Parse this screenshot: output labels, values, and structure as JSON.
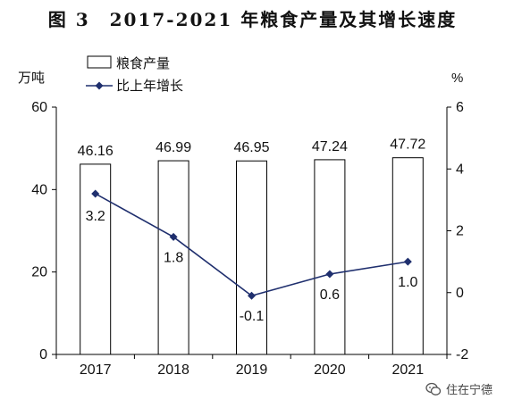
{
  "title": "图 3　2017-2021 年粮食产量及其增长速度",
  "watermark": "住在宁德",
  "chart_data": {
    "type": "bar+line",
    "categories": [
      "2017",
      "2018",
      "2019",
      "2020",
      "2021"
    ],
    "series": [
      {
        "name": "粮食产量",
        "kind": "bar",
        "axis": "left",
        "values": [
          46.16,
          46.99,
          46.95,
          47.24,
          47.72
        ],
        "labels": [
          "46.16",
          "46.99",
          "46.95",
          "47.24",
          "47.72"
        ]
      },
      {
        "name": "比上年增长",
        "kind": "line",
        "axis": "right",
        "values": [
          3.2,
          1.8,
          -0.1,
          0.6,
          1.0
        ],
        "labels": [
          "3.2",
          "1.8",
          "-0.1",
          "0.6",
          "1.0"
        ]
      }
    ],
    "y_left": {
      "unit": "万吨",
      "ylim": [
        0,
        60
      ],
      "ticks": [
        "0",
        "20",
        "40",
        "60"
      ]
    },
    "y_right": {
      "unit": "%",
      "ylim": [
        -2,
        6
      ],
      "ticks": [
        "-2",
        "0",
        "2",
        "4",
        "6"
      ]
    },
    "legend_position": "top-left",
    "colors": {
      "bar_fill": "#ffffff",
      "bar_stroke": "#000000",
      "line": "#1f2f6e",
      "marker": "#1f2f6e"
    }
  }
}
